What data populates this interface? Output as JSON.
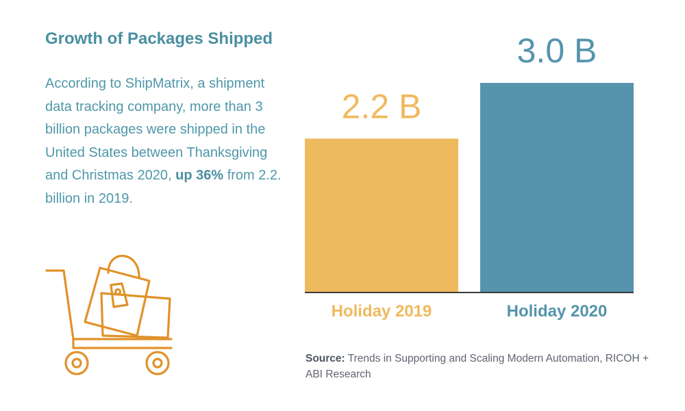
{
  "colors": {
    "title": "#4a8fa0",
    "body_text": "#4f97aa",
    "bar_2019": "#efba5e",
    "bar_2020": "#5594ac",
    "baseline": "#3a3a3a",
    "icon_stroke": "#e0922a",
    "source_text": "#5f6470"
  },
  "header": {
    "title": "Growth of Packages Shipped"
  },
  "description": {
    "part1": "According to ShipMatrix, a shipment data tracking company, more than 3 billion packages were shipped in the United States between Thanksgiving and Christmas 2020, ",
    "emphasis": "up 36%",
    "part2": " from 2.2. billion in 2019."
  },
  "illustration": {
    "icon": "shopping-cart-with-bag-icon"
  },
  "chart_data": {
    "type": "bar",
    "categories": [
      "Holiday 2019",
      "Holiday 2020"
    ],
    "values": [
      2.2,
      3.0
    ],
    "data_labels": [
      "2.2 B",
      "3.0 B"
    ],
    "colors": [
      "#efba5e",
      "#5594ac"
    ],
    "title": "",
    "xlabel": "",
    "ylabel": "",
    "ylim": [
      0,
      3.0
    ],
    "grid": false,
    "legend": "none"
  },
  "source": {
    "label": "Source:",
    "text": " Trends in Supporting and Scaling Modern Automation, RICOH + ABI Research"
  }
}
